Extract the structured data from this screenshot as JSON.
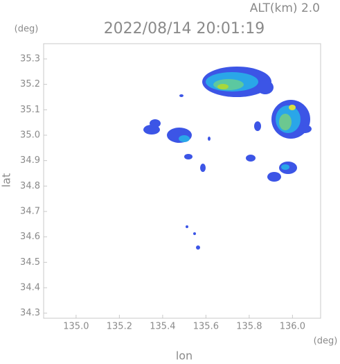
{
  "header": {
    "altitude": "ALT(km) 2.0",
    "timestamp": "2022/08/14 20:01:19",
    "y_unit": "(deg)",
    "x_unit": "(deg)"
  },
  "chart_data": {
    "type": "map",
    "x_label": "lon",
    "y_label": "lat",
    "xlim": [
      134.85,
      136.13
    ],
    "ylim": [
      34.28,
      35.36
    ],
    "xticks": [
      {
        "value": 135,
        "label": "135.0"
      },
      135.2,
      135.4,
      135.6,
      135.8,
      {
        "value": 136,
        "label": "136.0"
      }
    ],
    "yticks": [
      34.3,
      34.4,
      34.5,
      34.6,
      34.7,
      34.8,
      34.9,
      {
        "value": 35,
        "label": "35.0"
      },
      35.1,
      35.2,
      35.3
    ]
  }
}
